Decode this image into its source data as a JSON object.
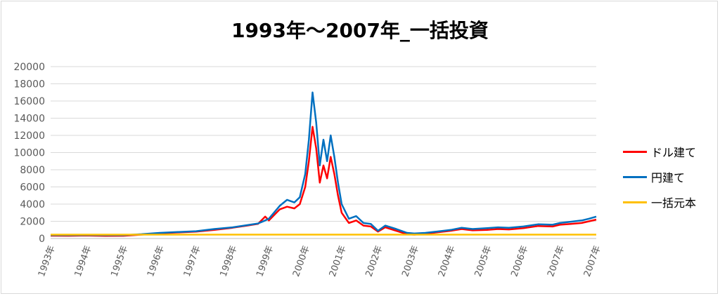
{
  "chart_data": {
    "type": "line",
    "title": "1993年～2007年_一括投資",
    "xlabel": "",
    "ylabel": "",
    "ylim": [
      0,
      20000
    ],
    "yticks": [
      0,
      2000,
      4000,
      6000,
      8000,
      10000,
      12000,
      14000,
      16000,
      18000,
      20000
    ],
    "xlim": [
      1993.0,
      2008.0
    ],
    "x_tick_labels": [
      "1993年",
      "1994年",
      "1995年",
      "1996年",
      "1997年",
      "1998年",
      "1999年",
      "2000年",
      "2001年",
      "2002年",
      "2003年",
      "2004年",
      "2005年",
      "2006年",
      "2007年",
      "2007年"
    ],
    "grid": true,
    "legend_position": "right",
    "series": [
      {
        "name": "ドル建て",
        "color": "#ff0000",
        "x": [
          1993.0,
          1993.5,
          1994.0,
          1994.5,
          1995.0,
          1995.5,
          1996.0,
          1996.5,
          1997.0,
          1997.5,
          1998.0,
          1998.4,
          1998.7,
          1998.9,
          1999.0,
          1999.3,
          1999.5,
          1999.7,
          1999.85,
          2000.0,
          2000.1,
          2000.2,
          2000.3,
          2000.4,
          2000.5,
          2000.6,
          2000.7,
          2000.8,
          2000.9,
          2001.0,
          2001.2,
          2001.4,
          2001.6,
          2001.8,
          2002.0,
          2002.2,
          2002.5,
          2002.8,
          2003.0,
          2003.3,
          2003.6,
          2004.0,
          2004.3,
          2004.6,
          2005.0,
          2005.3,
          2005.6,
          2006.0,
          2006.4,
          2006.8,
          2007.0,
          2007.3,
          2007.6,
          2007.8,
          2008.0
        ],
        "y": [
          330,
          320,
          340,
          310,
          320,
          450,
          600,
          700,
          800,
          1000,
          1250,
          1500,
          1700,
          2550,
          2100,
          3400,
          3700,
          3500,
          4000,
          6000,
          9000,
          13000,
          10500,
          6500,
          8500,
          7000,
          9500,
          7500,
          5000,
          3000,
          1800,
          2100,
          1500,
          1400,
          800,
          1300,
          900,
          500,
          450,
          550,
          700,
          900,
          1100,
          950,
          1000,
          1100,
          1050,
          1200,
          1450,
          1400,
          1600,
          1700,
          1800,
          2000,
          2200
        ]
      },
      {
        "name": "円建て",
        "color": "#0070c0",
        "x": [
          1993.0,
          1993.5,
          1994.0,
          1994.5,
          1995.0,
          1995.5,
          1996.0,
          1996.5,
          1997.0,
          1997.5,
          1998.0,
          1998.4,
          1998.7,
          1998.9,
          1999.0,
          1999.3,
          1999.5,
          1999.7,
          1999.85,
          2000.0,
          2000.1,
          2000.2,
          2000.3,
          2000.4,
          2000.5,
          2000.6,
          2000.7,
          2000.8,
          2000.9,
          2001.0,
          2001.2,
          2001.4,
          2001.6,
          2001.8,
          2002.0,
          2002.2,
          2002.5,
          2002.8,
          2003.0,
          2003.3,
          2003.6,
          2004.0,
          2004.3,
          2004.6,
          2005.0,
          2005.3,
          2005.6,
          2006.0,
          2006.4,
          2006.8,
          2007.0,
          2007.3,
          2007.6,
          2007.8,
          2008.0
        ],
        "y": [
          380,
          390,
          400,
          390,
          390,
          500,
          650,
          750,
          850,
          1100,
          1300,
          1550,
          1750,
          2100,
          2300,
          3800,
          4500,
          4200,
          4800,
          7500,
          11500,
          17000,
          13500,
          8500,
          11500,
          9000,
          12000,
          9500,
          6500,
          4000,
          2300,
          2600,
          1800,
          1700,
          900,
          1500,
          1100,
          650,
          580,
          650,
          800,
          1000,
          1250,
          1100,
          1200,
          1300,
          1250,
          1400,
          1650,
          1600,
          1800,
          1950,
          2100,
          2300,
          2550
        ]
      },
      {
        "name": "一括元本",
        "color": "#ffc000",
        "x": [
          1993.0,
          2008.0
        ],
        "y": [
          450,
          450
        ]
      }
    ]
  }
}
